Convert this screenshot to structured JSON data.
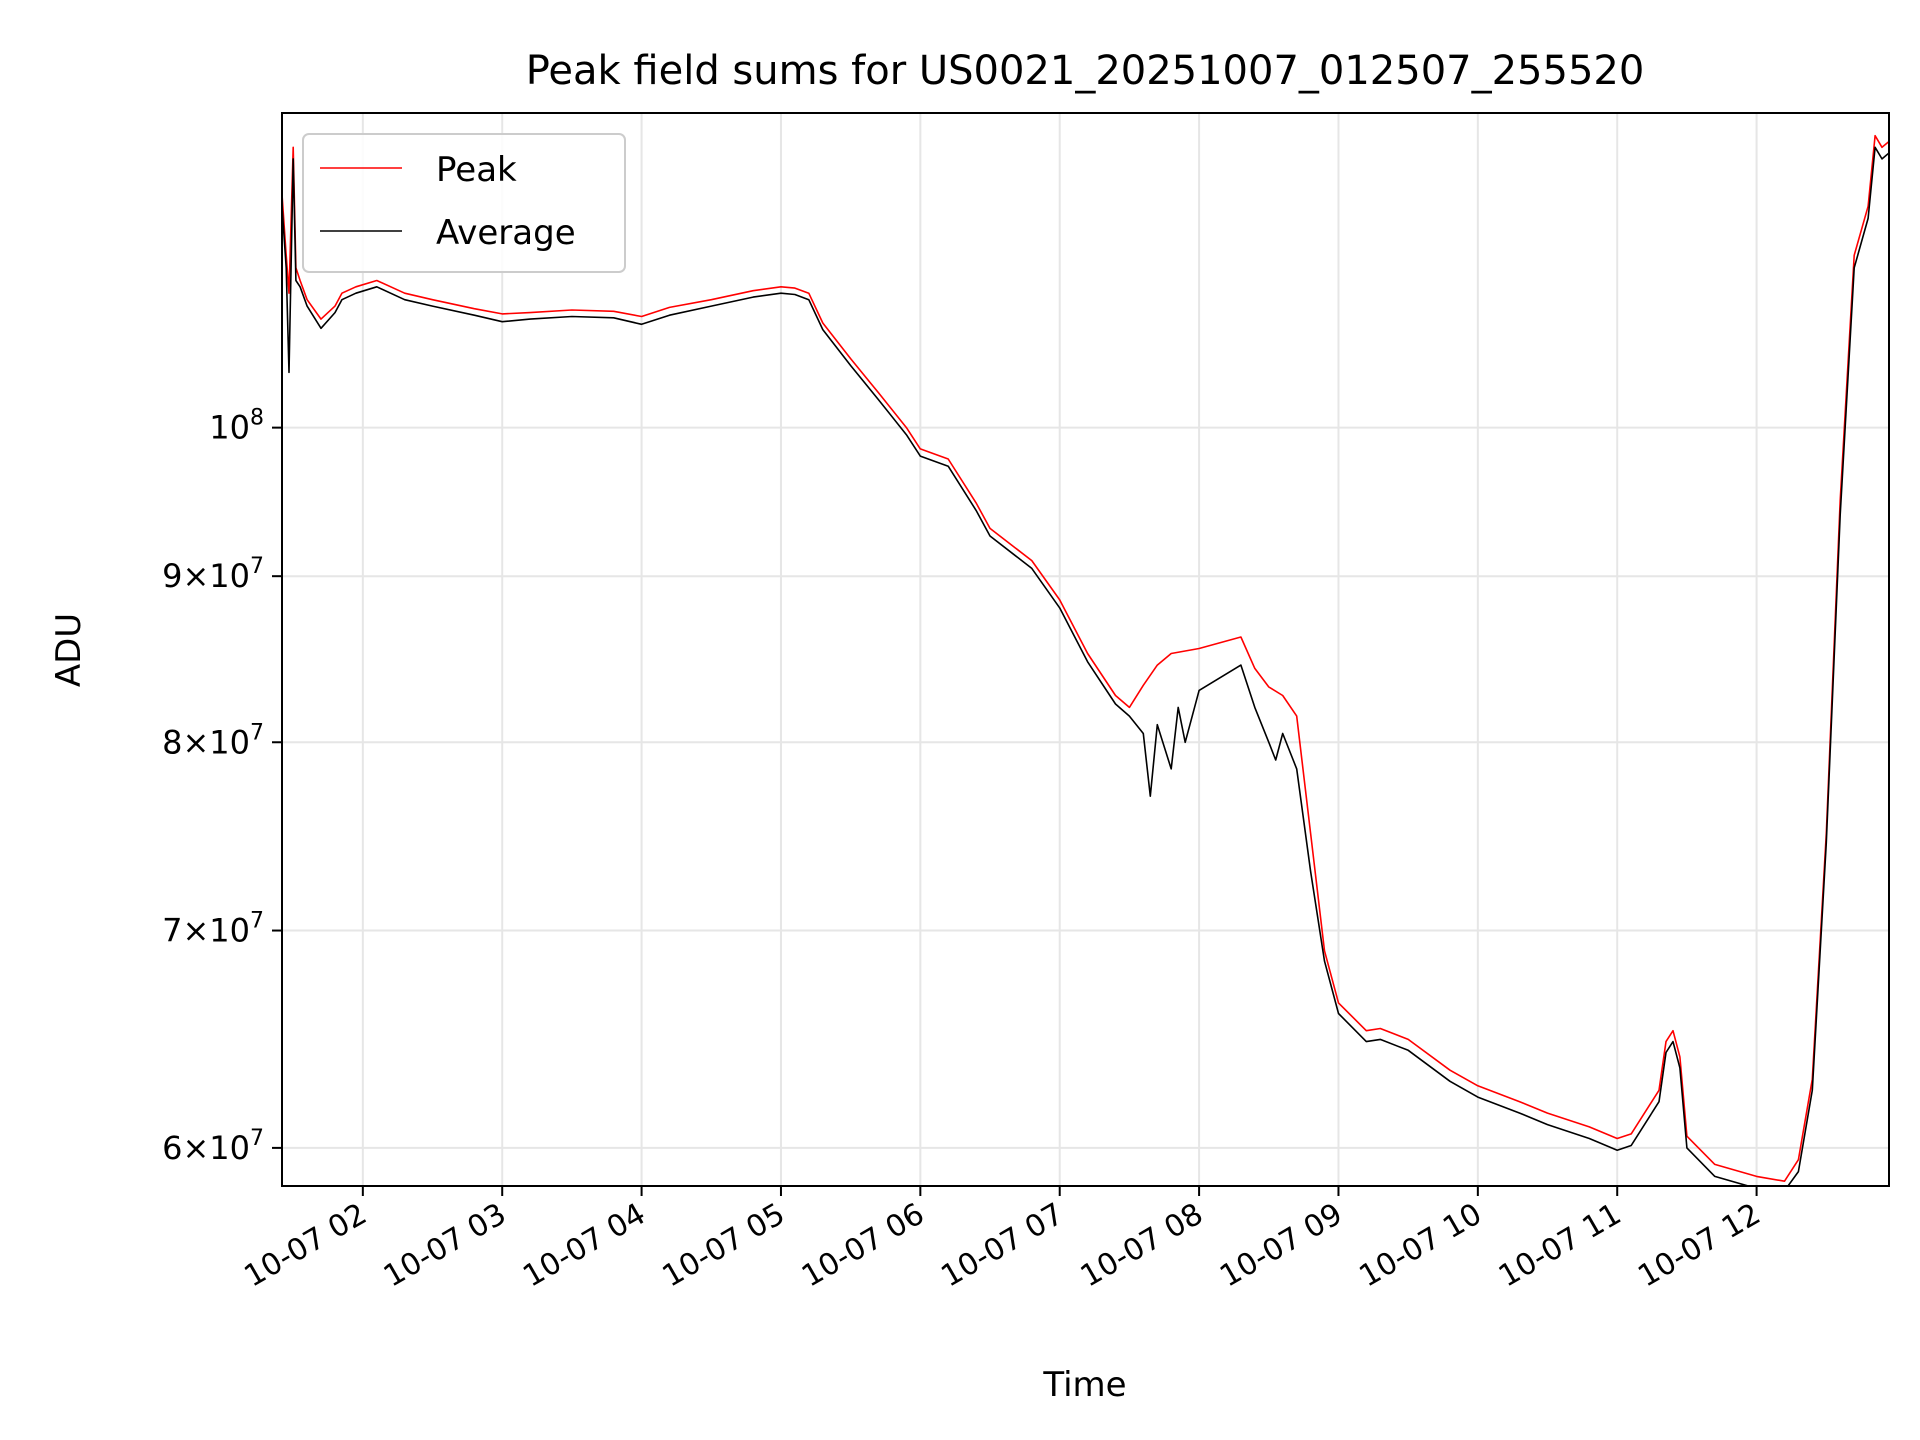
{
  "chart_data": {
    "type": "line",
    "title": "Peak field sums for US0021_20251007_012507_255520",
    "xlabel": "Time",
    "ylabel": "ADU",
    "x_unit": "hours since 2025-10-07 00:00",
    "xlim": [
      1.42,
      12.95
    ],
    "ylim": [
      58400000,
      125000000
    ],
    "yscale": "log",
    "grid": true,
    "legend_position": "upper-left",
    "x_ticks": [
      {
        "value": 2,
        "label": "10-07 02"
      },
      {
        "value": 3,
        "label": "10-07 03"
      },
      {
        "value": 4,
        "label": "10-07 04"
      },
      {
        "value": 5,
        "label": "10-07 05"
      },
      {
        "value": 6,
        "label": "10-07 06"
      },
      {
        "value": 7,
        "label": "10-07 07"
      },
      {
        "value": 8,
        "label": "10-07 08"
      },
      {
        "value": 9,
        "label": "10-07 09"
      },
      {
        "value": 10,
        "label": "10-07 10"
      },
      {
        "value": 11,
        "label": "10-07 11"
      },
      {
        "value": 12,
        "label": "10-07 12"
      }
    ],
    "y_ticks": [
      {
        "value": 100000000,
        "label": "10",
        "sup": "8"
      },
      {
        "value": 90000000,
        "label": "9×10",
        "sup": "7"
      },
      {
        "value": 80000000,
        "label": "8×10",
        "sup": "7"
      },
      {
        "value": 70000000,
        "label": "7×10",
        "sup": "7"
      },
      {
        "value": 60000000,
        "label": "6×10",
        "sup": "7"
      }
    ],
    "series": [
      {
        "name": "Peak",
        "color": "#ff0000",
        "x": [
          1.42,
          1.45,
          1.47,
          1.5,
          1.52,
          1.55,
          1.6,
          1.7,
          1.8,
          1.85,
          1.95,
          2.1,
          2.3,
          2.5,
          2.8,
          3.0,
          3.2,
          3.5,
          3.8,
          4.0,
          4.2,
          4.5,
          4.8,
          5.0,
          5.1,
          5.2,
          5.3,
          5.5,
          5.7,
          5.9,
          6.0,
          6.2,
          6.4,
          6.5,
          6.8,
          7.0,
          7.2,
          7.4,
          7.5,
          7.6,
          7.7,
          7.8,
          8.0,
          8.3,
          8.4,
          8.5,
          8.6,
          8.7,
          8.8,
          8.9,
          9.0,
          9.2,
          9.3,
          9.5,
          9.8,
          10.0,
          10.3,
          10.5,
          10.8,
          11.0,
          11.1,
          11.3,
          11.35,
          11.4,
          11.45,
          11.5,
          11.7,
          12.0,
          12.2,
          12.3,
          12.4,
          12.5,
          12.6,
          12.7,
          12.8,
          12.85,
          12.9,
          12.95
        ],
        "y": [
          118000000,
          113000000,
          110000000,
          122000000,
          112000000,
          111000000,
          109500000,
          108000000,
          109000000,
          110000000,
          110500000,
          111000000,
          110000000,
          109500000,
          108800000,
          108400000,
          108500000,
          108700000,
          108600000,
          108200000,
          108900000,
          109500000,
          110200000,
          110500000,
          110400000,
          110000000,
          107700000,
          105000000,
          102500000,
          100000000,
          98500000,
          97800000,
          94800000,
          93100000,
          91000000,
          88500000,
          85200000,
          82700000,
          82000000,
          83300000,
          84500000,
          85200000,
          85500000,
          86200000,
          84300000,
          83200000,
          82700000,
          81500000,
          75000000,
          69000000,
          66500000,
          65200000,
          65300000,
          64800000,
          63400000,
          62700000,
          62000000,
          61500000,
          60900000,
          60400000,
          60600000,
          62500000,
          64700000,
          65200000,
          64000000,
          60500000,
          59300000,
          58800000,
          58600000,
          59500000,
          63000000,
          75000000,
          95000000,
          113000000,
          117000000,
          123000000,
          122000000,
          122500000
        ]
      },
      {
        "name": "Average",
        "color": "#000000",
        "x": [
          1.42,
          1.45,
          1.47,
          1.5,
          1.52,
          1.55,
          1.6,
          1.7,
          1.8,
          1.85,
          1.95,
          2.1,
          2.3,
          2.5,
          2.8,
          3.0,
          3.2,
          3.5,
          3.8,
          4.0,
          4.2,
          4.5,
          4.8,
          5.0,
          5.1,
          5.2,
          5.3,
          5.5,
          5.7,
          5.9,
          6.0,
          6.2,
          6.4,
          6.5,
          6.8,
          7.0,
          7.2,
          7.4,
          7.5,
          7.6,
          7.65,
          7.7,
          7.8,
          7.85,
          7.9,
          8.0,
          8.3,
          8.4,
          8.5,
          8.55,
          8.6,
          8.7,
          8.8,
          8.9,
          9.0,
          9.2,
          9.3,
          9.5,
          9.8,
          10.0,
          10.3,
          10.5,
          10.8,
          11.0,
          11.1,
          11.3,
          11.35,
          11.4,
          11.45,
          11.5,
          11.7,
          12.0,
          12.2,
          12.3,
          12.4,
          12.5,
          12.6,
          12.7,
          12.8,
          12.85,
          12.9,
          12.95
        ],
        "y": [
          117000000,
          112000000,
          104000000,
          121000000,
          111000000,
          110500000,
          109000000,
          107300000,
          108500000,
          109500000,
          110000000,
          110500000,
          109500000,
          109000000,
          108300000,
          107800000,
          108000000,
          108200000,
          108100000,
          107600000,
          108300000,
          109000000,
          109700000,
          110000000,
          109900000,
          109500000,
          107200000,
          104500000,
          102000000,
          99500000,
          98000000,
          97300000,
          94300000,
          92600000,
          90500000,
          88000000,
          84700000,
          82200000,
          81500000,
          80500000,
          77000000,
          81000000,
          78500000,
          82000000,
          80000000,
          83000000,
          84500000,
          82000000,
          80000000,
          79000000,
          80500000,
          78500000,
          73000000,
          68500000,
          66000000,
          64700000,
          64800000,
          64300000,
          62900000,
          62200000,
          61500000,
          61000000,
          60400000,
          59900000,
          60100000,
          62000000,
          64200000,
          64700000,
          63500000,
          60000000,
          58800000,
          58300000,
          58200000,
          59000000,
          62500000,
          74500000,
          94000000,
          112000000,
          116000000,
          122000000,
          121000000,
          121500000
        ]
      }
    ]
  }
}
